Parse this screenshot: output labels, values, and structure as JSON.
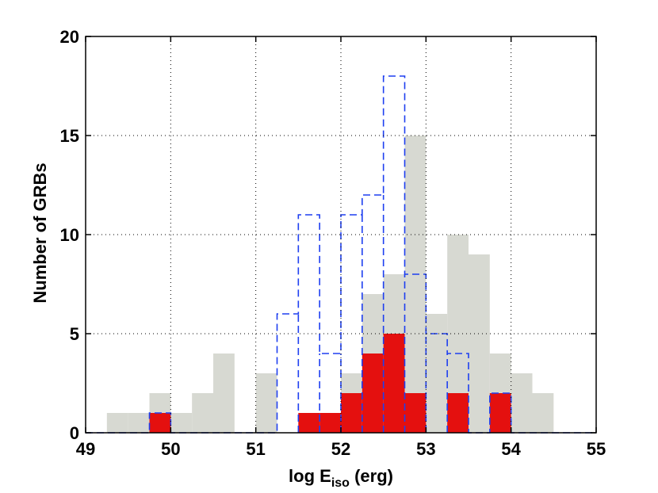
{
  "chart_data": {
    "type": "bar",
    "xlabel": {
      "base": "log E",
      "subscript": "iso",
      "suffix": " (erg)"
    },
    "ylabel": "Number of GRBs",
    "xlim": [
      49,
      55
    ],
    "ylim": [
      0,
      20
    ],
    "x_ticks": [
      49,
      50,
      51,
      52,
      53,
      54,
      55
    ],
    "y_ticks": [
      0,
      5,
      10,
      15,
      20
    ],
    "grid": true,
    "bin_width": 0.25,
    "bin_starts": [
      49.25,
      49.5,
      49.75,
      50.0,
      50.25,
      50.5,
      50.75,
      51.0,
      51.25,
      51.5,
      51.75,
      52.0,
      52.25,
      52.5,
      52.75,
      53.0,
      53.25,
      53.5,
      53.75,
      54.0,
      54.25,
      54.5,
      54.75
    ],
    "series": [
      {
        "style": "filled-gray",
        "color": "#d7d9d2",
        "values": [
          1,
          1,
          2,
          1,
          2,
          4,
          0,
          3,
          0,
          1,
          1,
          3,
          7,
          8,
          15,
          6,
          10,
          9,
          4,
          3,
          2,
          0,
          0
        ]
      },
      {
        "style": "dashed-outline",
        "color": "#1e3ff0",
        "values": [
          0,
          0,
          1,
          0,
          0,
          0,
          0,
          0,
          6,
          11,
          4,
          11,
          12,
          18,
          8,
          5,
          4,
          0,
          2,
          0,
          0,
          0,
          0
        ]
      },
      {
        "style": "filled-red",
        "color": "#e4100f",
        "values": [
          0,
          0,
          1,
          0,
          0,
          0,
          0,
          0,
          0,
          1,
          1,
          2,
          4,
          5,
          2,
          0,
          2,
          0,
          2,
          0,
          0,
          0,
          0
        ]
      }
    ]
  }
}
